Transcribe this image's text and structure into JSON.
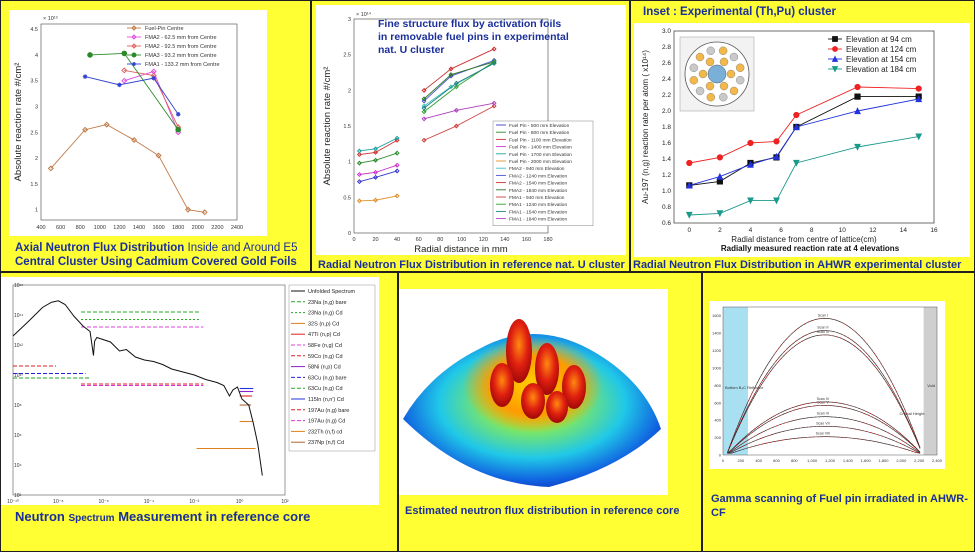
{
  "colors": {
    "panel_bg": "#ffff33",
    "caption": "#1a2f9a"
  },
  "chart_data": [
    {
      "id": "axial",
      "type": "line",
      "title": "",
      "ylabel": "Absolute reaction rate  #/cm²",
      "xlabel": "",
      "y_multiplier": "× 10¹³",
      "xlim": [
        400,
        2400
      ],
      "ylim": [
        0.8,
        4.6
      ],
      "x_ticks": [
        400,
        600,
        800,
        1000,
        1200,
        1400,
        1600,
        1800,
        2000,
        2200,
        2400
      ],
      "y_ticks": [
        1,
        1.5,
        2,
        2.5,
        3,
        3.5,
        4,
        4.5
      ],
      "series": [
        {
          "name": "Fuel-Pin Centre",
          "color": "#c07a48",
          "marker": "diamond",
          "x": [
            500,
            850,
            1070,
            1350,
            1600,
            1900,
            2070
          ],
          "y": [
            1.8,
            2.55,
            2.65,
            2.35,
            2.05,
            1.0,
            0.95
          ]
        },
        {
          "name": "FMA2 - 62.5 mm from Centre",
          "color": "#e050e0",
          "marker": "diamond",
          "x": [
            1250,
            1550,
            1800
          ],
          "y": [
            3.5,
            3.68,
            2.5
          ]
        },
        {
          "name": "FMA2 - 92.5 mm from Centre",
          "color": "#e06060",
          "marker": "diamond",
          "x": [
            1250,
            1550,
            1800
          ],
          "y": [
            3.7,
            3.6,
            2.6
          ]
        },
        {
          "name": "FMA3 - 93.2 mm from Centre",
          "color": "#2a8a2a",
          "marker": "circle",
          "x": [
            900,
            1250,
            1800
          ],
          "y": [
            4.0,
            4.03,
            2.55
          ]
        },
        {
          "name": "FMA1 - 133.2 mm from Centre",
          "color": "#3040d0",
          "marker": "star",
          "x": [
            850,
            1200,
            1550,
            1800
          ],
          "y": [
            3.58,
            3.42,
            3.55,
            2.85
          ]
        }
      ]
    },
    {
      "id": "radial_nat_u",
      "type": "line",
      "title": "Fine structure flux by activation foils in removable fuel pins in experimental nat. U cluster",
      "ylabel": "Absolute reaction rate  #/cm²",
      "xlabel": "Radial distance in mm",
      "y_multiplier": "× 10¹⁴",
      "xlim": [
        0,
        180
      ],
      "ylim": [
        0,
        3
      ],
      "x_ticks": [
        0,
        20,
        40,
        60,
        80,
        100,
        120,
        140,
        160,
        180
      ],
      "y_ticks": [
        0,
        0.5,
        1,
        1.5,
        2,
        2.5,
        3
      ],
      "series": [
        {
          "name": "Fuel Pin - 500 mm Elevation",
          "color": "#3a3acc",
          "x": [
            5,
            20,
            40
          ],
          "y": [
            0.72,
            0.78,
            0.87
          ]
        },
        {
          "name": "Fuel Pin - 800 mm Elevation",
          "color": "#2a8a2a",
          "x": [
            5,
            20,
            40
          ],
          "y": [
            0.98,
            1.02,
            1.12
          ]
        },
        {
          "name": "Fuel Pin - 1100 mm Elevation",
          "color": "#d03030",
          "x": [
            5,
            20,
            40
          ],
          "y": [
            1.1,
            1.13,
            1.3
          ]
        },
        {
          "name": "Fuel Pin - 1400 mm Elevation",
          "color": "#cc33cc",
          "x": [
            5,
            20,
            40
          ],
          "y": [
            0.82,
            0.85,
            0.95
          ]
        },
        {
          "name": "Fuel Pin - 1700 mm Elevation",
          "color": "#20a0a0",
          "x": [
            5,
            20,
            40
          ],
          "y": [
            1.15,
            1.18,
            1.33
          ]
        },
        {
          "name": "Fuel Pin - 2000 mm Elevation",
          "color": "#e09030",
          "x": [
            5,
            20,
            40
          ],
          "y": [
            0.45,
            0.46,
            0.52
          ]
        },
        {
          "name": "FMA2 - 940 mm Elevation",
          "color": "#40c0c0",
          "x": [
            65,
            90,
            130
          ],
          "y": [
            1.78,
            2.05,
            2.38
          ]
        },
        {
          "name": "FMA2 - 1240 mm Elevation",
          "color": "#5050d0",
          "x": [
            65,
            90,
            130
          ],
          "y": [
            1.85,
            2.2,
            2.42
          ]
        },
        {
          "name": "FMA2 - 1540 mm Elevation",
          "color": "#d03030",
          "x": [
            65,
            90,
            130
          ],
          "y": [
            2.0,
            2.3,
            2.58
          ]
        },
        {
          "name": "FMA2 - 1840 mm Elevation",
          "color": "#2a7a2a",
          "x": [
            65,
            90,
            130
          ],
          "y": [
            1.88,
            2.22,
            2.4
          ]
        },
        {
          "name": "FMA1 - 940 mm Elevation",
          "color": "#d04040",
          "x": [
            65,
            95,
            130
          ],
          "y": [
            1.3,
            1.5,
            1.78
          ]
        },
        {
          "name": "FMA1 - 1240 mm Elevation",
          "color": "#30a030",
          "x": [
            65,
            95,
            130
          ],
          "y": [
            1.7,
            2.05,
            2.4
          ]
        },
        {
          "name": "FMA1 - 1540 mm Elevation",
          "color": "#208080",
          "x": [
            65,
            95,
            130
          ],
          "y": [
            1.75,
            2.1,
            2.38
          ]
        },
        {
          "name": "FMA1 - 1840 mm Elevation",
          "color": "#b040c0",
          "x": [
            65,
            95,
            130
          ],
          "y": [
            1.6,
            1.72,
            1.82
          ]
        }
      ]
    },
    {
      "id": "ahwr_cluster",
      "type": "line",
      "title": "Inset : Experimental (Th,Pu) cluster",
      "ylabel": "Au-197 (n,g) reaction rate per atom ( x10¹⁴)",
      "xlabel": "Radial distance from centre of lattice(cm)",
      "subtitle": "Radially measured reaction rate at 4 elevations",
      "xlim": [
        -1,
        16
      ],
      "ylim": [
        0.6,
        3.0
      ],
      "x_ticks": [
        0,
        2,
        4,
        6,
        8,
        10,
        12,
        14,
        16
      ],
      "y_ticks": [
        0.6,
        0.8,
        1.0,
        1.2,
        1.4,
        1.6,
        1.8,
        2.0,
        2.2,
        2.4,
        2.6,
        2.8,
        3.0
      ],
      "series": [
        {
          "name": "Elevation at 94 cm",
          "color": "#111111",
          "marker": "square",
          "x": [
            0,
            2,
            4,
            5.7,
            7,
            11,
            15
          ],
          "y": [
            1.07,
            1.12,
            1.35,
            1.42,
            1.8,
            2.18,
            2.18
          ]
        },
        {
          "name": "Elevation at 124 cm",
          "color": "#ee2222",
          "marker": "circle",
          "x": [
            0,
            2,
            4,
            5.7,
            7,
            11,
            15
          ],
          "y": [
            1.35,
            1.42,
            1.6,
            1.62,
            1.95,
            2.3,
            2.28
          ]
        },
        {
          "name": "Elevation at 154 cm",
          "color": "#2233dd",
          "marker": "triangle",
          "x": [
            0,
            2,
            4,
            5.7,
            7,
            11,
            15
          ],
          "y": [
            1.07,
            1.18,
            1.33,
            1.43,
            1.8,
            2.0,
            2.15
          ]
        },
        {
          "name": "Elevation at 184 cm",
          "color": "#1a9a8a",
          "marker": "triangle-down",
          "x": [
            0,
            2,
            4,
            5.7,
            7,
            11,
            15
          ],
          "y": [
            0.7,
            0.72,
            0.88,
            0.88,
            1.35,
            1.55,
            1.68
          ]
        }
      ]
    },
    {
      "id": "neutron_spectrum",
      "type": "line",
      "title": "",
      "x_scale": "log",
      "y_scale": "log",
      "xlim": [
        1e-10,
        100
      ],
      "ylim": [
        100.0,
        1e+16
      ],
      "x_ticks": [
        "10⁻¹⁰",
        "10⁻⁸",
        "10⁻⁶",
        "10⁻⁴",
        "10⁻²",
        "10⁰",
        "10²"
      ],
      "y_ticks": [
        "10²",
        "10⁴",
        "10⁶",
        "10⁸",
        "10¹⁰",
        "10¹²",
        "10¹⁴",
        "10¹⁶"
      ],
      "spectrum": {
        "name": "Unfolded Spectrum",
        "x_log10": [
          -10,
          -9.3,
          -8.7,
          -8.3,
          -8.0,
          -7.7,
          -7.3,
          -6.9,
          -6.6,
          -6.45,
          -6.4,
          -6.3,
          -5.7,
          -5.3,
          -5.0,
          -4.6,
          -4.2,
          -3.8,
          -3.4,
          -3,
          -2.5,
          -2,
          -1.5,
          -1,
          -0.7,
          -0.45,
          -0.3,
          -0.1,
          0.1,
          0.4,
          0.6,
          0.8,
          1.0
        ],
        "y_log10": [
          12.6,
          13.6,
          14.5,
          14.85,
          14.95,
          14.7,
          13.9,
          13.25,
          12.9,
          11.3,
          12.25,
          12.5,
          12.2,
          11.6,
          11.7,
          11.2,
          11.0,
          10.9,
          10.7,
          10.4,
          10.2,
          10.0,
          9.7,
          9.5,
          9.3,
          8.6,
          9.0,
          9.2,
          8.4,
          8.0,
          6.8,
          5.4,
          3.3
        ]
      },
      "reactions": [
        {
          "name": "23Na (n,g) bare",
          "color": "#22aa22",
          "dash": "4,2",
          "from": -7.0,
          "to": -1.7,
          "y": 14.2
        },
        {
          "name": "23Na (n,g) Cd",
          "color": "#22aa22",
          "dash": "2,2",
          "from": -7.0,
          "to": -1.8,
          "y": 13.7
        },
        {
          "name": "32S (n,p) Cd",
          "color": "#e08020",
          "dash": "",
          "from": 0.0,
          "to": 0.6,
          "y": 6.9
        },
        {
          "name": "47Ti (n,p) Cd",
          "color": "#dd2222",
          "dash": "",
          "from": 0.0,
          "to": 0.55,
          "y": 8.6
        },
        {
          "name": "58Fe (n,g) Cd",
          "color": "#dd44dd",
          "dash": "4,2",
          "from": -7.0,
          "to": -1.6,
          "y": 13.2
        },
        {
          "name": "59Co (n,g) Cd",
          "color": "#dd2222",
          "dash": "4,2",
          "from": -10.0,
          "to": -8.1,
          "y": 10.6
        },
        {
          "name": "58Ni (n,p) Cd",
          "color": "#8822cc",
          "dash": "",
          "from": 0.0,
          "to": 0.6,
          "y": 8.9
        },
        {
          "name": "63Cu (n,g) bare",
          "color": "#2222dd",
          "dash": "4,2",
          "from": -10.0,
          "to": -6.8,
          "y": 10.1
        },
        {
          "name": "63Cu (n,g) Cd",
          "color": "#22aa22",
          "dash": "4,2",
          "from": -10.0,
          "to": -6.6,
          "y": 9.8
        },
        {
          "name": "115In (n,n') Cd",
          "color": "#2233dd",
          "dash": "",
          "from": 0.0,
          "to": 0.6,
          "y": 9.1
        },
        {
          "name": "197Au (n,g) bare",
          "color": "#dd2222",
          "dash": "4,2",
          "from": -7.0,
          "to": -1.6,
          "y": 9.4
        },
        {
          "name": "197Au (n,g) Cd",
          "color": "#dd33dd",
          "dash": "4,2",
          "from": -7.0,
          "to": -1.6,
          "y": 9.3
        },
        {
          "name": "232Th (n,f) cd",
          "color": "#e08020",
          "dash": "",
          "from": -1.9,
          "to": 0.7,
          "y": 5.1
        },
        {
          "name": "237Np (n,f) Cd",
          "color": "#aa6633",
          "dash": "",
          "from": 0.0,
          "to": 0.5,
          "y": 8.0
        }
      ]
    },
    {
      "id": "gamma_scan",
      "type": "line",
      "title": "",
      "xlim": [
        0,
        2400
      ],
      "ylim": [
        0,
        1700
      ],
      "x_ticks": [
        0,
        200,
        400,
        600,
        800,
        1000,
        1200,
        1400,
        1600,
        1800,
        2000,
        2200,
        2400
      ],
      "y_ticks": [
        0,
        200,
        400,
        600,
        800,
        1000,
        1200,
        1400,
        1600
      ],
      "annotations": {
        "left_band": "Bottom B₄C Reflector",
        "right_band": "Void",
        "critical": "Critical Height"
      },
      "series": [
        {
          "name": "Scan I",
          "peak": 1570
        },
        {
          "name": "Scan II",
          "peak": 1430
        },
        {
          "name": "Scan III",
          "peak": 1380
        },
        {
          "name": "Scan IV",
          "peak": 610
        },
        {
          "name": "Scan V",
          "peak": 570
        },
        {
          "name": "Scan VI",
          "peak": 440
        },
        {
          "name": "Scan VII",
          "peak": 330
        },
        {
          "name": "Scan VIII",
          "peak": 210
        }
      ]
    }
  ],
  "captions": {
    "axial_1": "Axial Neutron Flux Distribution",
    "axial_2": " Inside and Around E5",
    "axial_3": "Central Cluster Using Cadmium Covered Gold Foils",
    "radial_nat": "Radial Neutron Flux Distribution in reference nat. U cluster",
    "radial_ahwr": "Radial Neutron Flux Distribution in AHWR experimental cluster",
    "spectrum_1": "Neutron ",
    "spectrum_2": "Spectrum",
    "spectrum_3": " Measurement in reference core",
    "estimated": "Estimated neutron flux distribution in reference core",
    "gamma": "Gamma scanning of Fuel pin irradiated in AHWR-CF"
  }
}
